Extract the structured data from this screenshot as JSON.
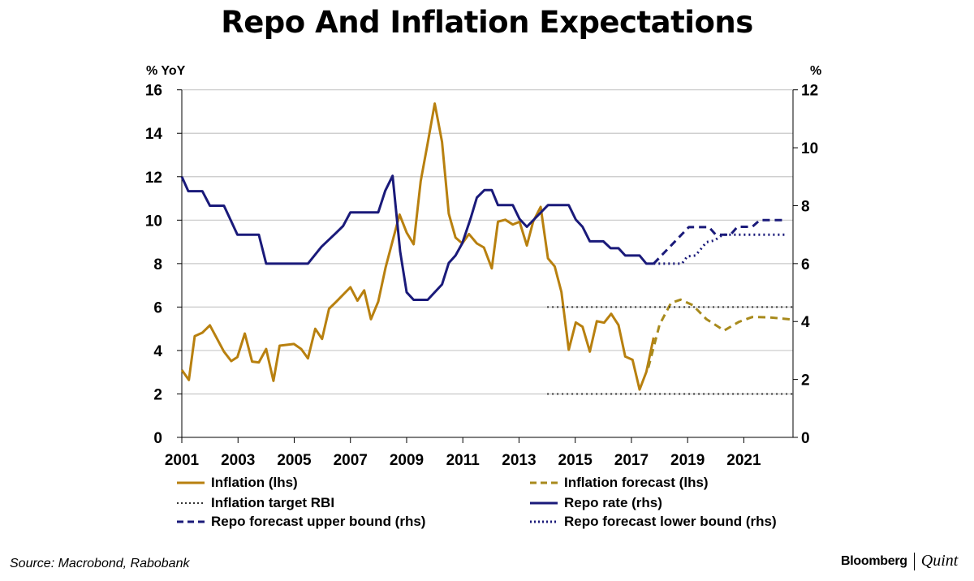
{
  "chart_data": {
    "type": "line",
    "title": "Repo And Inflation Expectations",
    "ylabel_left": "% YoY",
    "ylabel_right": "%",
    "xlim": [
      2001,
      2022.75
    ],
    "ylim_left": [
      0,
      16
    ],
    "ylim_right": [
      0,
      12
    ],
    "x_ticks": [
      "2001",
      "2003",
      "2005",
      "2007",
      "2009",
      "2011",
      "2013",
      "2015",
      "2017",
      "2019",
      "2021"
    ],
    "y_ticks_left": [
      "0",
      "2",
      "4",
      "6",
      "8",
      "10",
      "12",
      "14",
      "16"
    ],
    "y_ticks_right": [
      "0",
      "2",
      "4",
      "6",
      "8",
      "10",
      "12"
    ],
    "grid": "horizontal",
    "legend_placement": "bottom",
    "series": [
      {
        "name": "Inflation (lhs)",
        "axis": "left",
        "style": "solid",
        "color": "#b8800f",
        "points": [
          [
            2001.0,
            3.1
          ],
          [
            2001.25,
            2.64
          ],
          [
            2001.46,
            4.66
          ],
          [
            2001.73,
            4.82
          ],
          [
            2002.0,
            5.16
          ],
          [
            2002.5,
            3.95
          ],
          [
            2002.76,
            3.51
          ],
          [
            2002.98,
            3.7
          ],
          [
            2003.24,
            4.78
          ],
          [
            2003.5,
            3.49
          ],
          [
            2003.74,
            3.45
          ],
          [
            2004.0,
            4.07
          ],
          [
            2004.26,
            2.6
          ],
          [
            2004.48,
            4.22
          ],
          [
            2004.99,
            4.3
          ],
          [
            2005.25,
            4.07
          ],
          [
            2005.49,
            3.64
          ],
          [
            2005.75,
            5.0
          ],
          [
            2005.99,
            4.53
          ],
          [
            2006.24,
            5.92
          ],
          [
            2006.5,
            6.25
          ],
          [
            2007.0,
            6.91
          ],
          [
            2007.25,
            6.29
          ],
          [
            2007.49,
            6.77
          ],
          [
            2007.73,
            5.44
          ],
          [
            2007.99,
            6.25
          ],
          [
            2008.25,
            7.81
          ],
          [
            2008.75,
            10.26
          ],
          [
            2009.0,
            9.43
          ],
          [
            2009.25,
            8.89
          ],
          [
            2009.5,
            11.79
          ],
          [
            2009.75,
            13.54
          ],
          [
            2010.0,
            15.37
          ],
          [
            2010.26,
            13.6
          ],
          [
            2010.5,
            10.3
          ],
          [
            2010.74,
            9.2
          ],
          [
            2010.98,
            8.93
          ],
          [
            2011.22,
            9.36
          ],
          [
            2011.5,
            8.93
          ],
          [
            2011.75,
            8.74
          ],
          [
            2012.03,
            7.78
          ],
          [
            2012.25,
            9.93
          ],
          [
            2012.51,
            10.02
          ],
          [
            2012.78,
            9.8
          ],
          [
            2013.02,
            9.93
          ],
          [
            2013.28,
            8.83
          ],
          [
            2013.5,
            9.93
          ],
          [
            2013.77,
            10.61
          ],
          [
            2014.03,
            8.24
          ],
          [
            2014.27,
            7.87
          ],
          [
            2014.51,
            6.69
          ],
          [
            2014.77,
            4.03
          ],
          [
            2015.02,
            5.29
          ],
          [
            2015.26,
            5.09
          ],
          [
            2015.52,
            3.95
          ],
          [
            2015.77,
            5.35
          ],
          [
            2016.03,
            5.28
          ],
          [
            2016.28,
            5.69
          ],
          [
            2016.54,
            5.17
          ],
          [
            2016.78,
            3.72
          ],
          [
            2017.04,
            3.57
          ],
          [
            2017.29,
            2.2
          ],
          [
            2017.53,
            3.01
          ],
          [
            2017.79,
            4.6
          ]
        ]
      },
      {
        "name": "Inflation forecast (lhs)",
        "axis": "left",
        "style": "dashed",
        "color": "#a88a1c",
        "points": [
          [
            2017.6,
            3.2
          ],
          [
            2018.0,
            5.19
          ],
          [
            2018.41,
            6.19
          ],
          [
            2018.75,
            6.34
          ],
          [
            2019.18,
            6.09
          ],
          [
            2019.67,
            5.44
          ],
          [
            2020.3,
            4.92
          ],
          [
            2020.83,
            5.32
          ],
          [
            2021.3,
            5.54
          ],
          [
            2021.88,
            5.53
          ],
          [
            2022.75,
            5.42
          ]
        ]
      },
      {
        "name": "Inflation target RBI",
        "axis": "left",
        "style": "dotted",
        "color": "#333333",
        "segments": [
          [
            [
              2014.0,
              6
            ],
            [
              2022.75,
              6
            ]
          ],
          [
            [
              2014.0,
              2
            ],
            [
              2022.75,
              2
            ]
          ]
        ]
      },
      {
        "name": "Repo rate (rhs)",
        "axis": "right",
        "style": "solid",
        "color": "#1a1a7a",
        "points": [
          [
            2001.0,
            9.0
          ],
          [
            2001.23,
            8.5
          ],
          [
            2001.73,
            8.5
          ],
          [
            2002.0,
            8.0
          ],
          [
            2002.5,
            8.0
          ],
          [
            2002.74,
            7.5
          ],
          [
            2002.98,
            7.0
          ],
          [
            2003.74,
            7.0
          ],
          [
            2004.0,
            6.0
          ],
          [
            2005.49,
            6.0
          ],
          [
            2005.97,
            6.58
          ],
          [
            2006.5,
            7.07
          ],
          [
            2006.74,
            7.3
          ],
          [
            2007.0,
            7.77
          ],
          [
            2007.99,
            7.77
          ],
          [
            2008.24,
            8.52
          ],
          [
            2008.5,
            9.03
          ],
          [
            2008.77,
            6.42
          ],
          [
            2009.0,
            5.01
          ],
          [
            2009.25,
            4.75
          ],
          [
            2009.75,
            4.75
          ],
          [
            2010.26,
            5.28
          ],
          [
            2010.5,
            6.02
          ],
          [
            2010.74,
            6.28
          ],
          [
            2010.98,
            6.7
          ],
          [
            2011.27,
            7.54
          ],
          [
            2011.5,
            8.28
          ],
          [
            2011.77,
            8.54
          ],
          [
            2012.03,
            8.54
          ],
          [
            2012.25,
            8.02
          ],
          [
            2012.78,
            8.02
          ],
          [
            2013.02,
            7.54
          ],
          [
            2013.28,
            7.27
          ],
          [
            2014.03,
            8.02
          ],
          [
            2014.77,
            8.02
          ],
          [
            2015.02,
            7.52
          ],
          [
            2015.26,
            7.27
          ],
          [
            2015.52,
            6.77
          ],
          [
            2016.0,
            6.77
          ],
          [
            2016.26,
            6.53
          ],
          [
            2016.54,
            6.53
          ],
          [
            2016.78,
            6.28
          ],
          [
            2017.29,
            6.28
          ],
          [
            2017.53,
            6.0
          ],
          [
            2017.79,
            6.0
          ]
        ]
      },
      {
        "name": "Repo forecast upper bound (rhs)",
        "axis": "right",
        "style": "dashed",
        "color": "#1a1a7a",
        "points": [
          [
            2017.79,
            6.0
          ],
          [
            2019.04,
            7.26
          ],
          [
            2019.76,
            7.26
          ],
          [
            2020.0,
            7.0
          ],
          [
            2020.53,
            7.0
          ],
          [
            2020.77,
            7.27
          ],
          [
            2021.3,
            7.27
          ],
          [
            2021.57,
            7.5
          ],
          [
            2022.46,
            7.5
          ]
        ]
      },
      {
        "name": "Repo forecast lower bound (rhs)",
        "axis": "right",
        "style": "dotted",
        "color": "#1a1a7a",
        "points": [
          [
            2017.79,
            6.0
          ],
          [
            2018.8,
            6.0
          ],
          [
            2018.99,
            6.25
          ],
          [
            2019.28,
            6.28
          ],
          [
            2019.67,
            6.74
          ],
          [
            2019.96,
            6.8
          ],
          [
            2020.25,
            7.0
          ],
          [
            2022.56,
            7.0
          ]
        ]
      }
    ]
  },
  "source": "Source: Macrobond, Rabobank",
  "logo": {
    "brand": "Bloomberg",
    "sub": "Quint"
  }
}
